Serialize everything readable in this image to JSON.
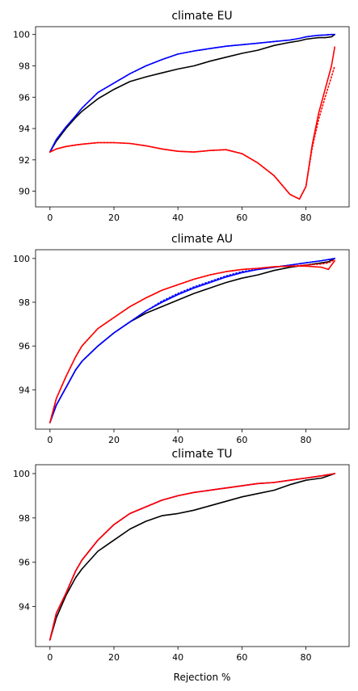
{
  "chart_data": [
    {
      "type": "line",
      "title": "climate EU",
      "xlabel": "",
      "ylabel": "",
      "xlim": [
        -4.5,
        93.5
      ],
      "ylim": [
        89.0,
        100.5
      ],
      "xticks": [
        0,
        20,
        40,
        60,
        80
      ],
      "yticks": [
        90,
        92,
        94,
        96,
        98,
        100
      ],
      "x": [
        0,
        2,
        5,
        8,
        10,
        15,
        20,
        25,
        30,
        35,
        40,
        45,
        50,
        55,
        60,
        65,
        70,
        75,
        78,
        80,
        82,
        84,
        86,
        88,
        89
      ],
      "series": [
        {
          "color": "#000000",
          "dash": "solid",
          "values": [
            92.5,
            93.2,
            94.0,
            94.7,
            95.1,
            95.9,
            96.5,
            97.0,
            97.3,
            97.55,
            97.8,
            98.0,
            98.3,
            98.55,
            98.8,
            99.0,
            99.3,
            99.5,
            99.6,
            99.7,
            99.75,
            99.8,
            99.8,
            99.85,
            100.0
          ]
        },
        {
          "color": "#0000ff",
          "dash": "solid",
          "values": [
            92.5,
            93.3,
            94.1,
            94.8,
            95.3,
            96.3,
            96.9,
            97.5,
            98.0,
            98.4,
            98.75,
            98.95,
            99.1,
            99.25,
            99.35,
            99.45,
            99.55,
            99.65,
            99.75,
            99.85,
            99.9,
            99.95,
            99.97,
            100.0,
            100.0
          ]
        },
        {
          "color": "#0000ff",
          "dash": "dotted",
          "values": [
            92.5,
            93.3,
            94.1,
            94.8,
            95.3,
            96.3,
            96.9,
            97.5,
            98.0,
            98.4,
            98.75,
            98.95,
            99.1,
            99.25,
            99.35,
            99.45,
            99.55,
            99.65,
            99.75,
            99.85,
            99.9,
            99.95,
            99.97,
            100.0,
            100.0
          ]
        },
        {
          "color": "#ff0000",
          "dash": "solid",
          "values": [
            92.5,
            92.7,
            92.85,
            92.95,
            93.0,
            93.1,
            93.1,
            93.05,
            92.9,
            92.7,
            92.55,
            92.5,
            92.6,
            92.65,
            92.4,
            91.8,
            91.0,
            89.8,
            89.5,
            90.3,
            93.0,
            95.0,
            96.5,
            98.0,
            99.2
          ]
        },
        {
          "color": "#ff0000",
          "dash": "dotted",
          "values": [
            92.5,
            92.7,
            92.85,
            92.95,
            93.0,
            93.1,
            93.1,
            93.05,
            92.9,
            92.7,
            92.55,
            92.5,
            92.6,
            92.65,
            92.4,
            91.8,
            91.0,
            89.8,
            89.5,
            90.3,
            92.8,
            94.6,
            96.0,
            97.3,
            98.0
          ]
        }
      ]
    },
    {
      "type": "line",
      "title": "climate AU",
      "xlabel": "",
      "ylabel": "",
      "xlim": [
        -4.5,
        93.5
      ],
      "ylim": [
        92.2,
        100.4
      ],
      "xticks": [
        0,
        20,
        40,
        60,
        80
      ],
      "yticks": [
        94,
        96,
        98,
        100
      ],
      "x": [
        0,
        2,
        5,
        8,
        10,
        15,
        20,
        25,
        30,
        35,
        40,
        45,
        50,
        55,
        60,
        65,
        70,
        75,
        80,
        85,
        87,
        89
      ],
      "series": [
        {
          "color": "#000000",
          "dash": "solid",
          "values": [
            92.5,
            93.3,
            94.1,
            94.9,
            95.3,
            96.0,
            96.6,
            97.1,
            97.5,
            97.8,
            98.1,
            98.4,
            98.65,
            98.9,
            99.1,
            99.25,
            99.45,
            99.6,
            99.7,
            99.8,
            99.85,
            100.0
          ]
        },
        {
          "color": "#0000ff",
          "dash": "solid",
          "values": [
            92.5,
            93.3,
            94.1,
            94.9,
            95.3,
            96.0,
            96.6,
            97.1,
            97.6,
            98.0,
            98.35,
            98.65,
            98.9,
            99.15,
            99.35,
            99.5,
            99.6,
            99.7,
            99.8,
            99.9,
            99.95,
            100.0
          ]
        },
        {
          "color": "#0000ff",
          "dash": "dotted",
          "values": [
            92.5,
            93.3,
            94.1,
            94.9,
            95.3,
            96.0,
            96.6,
            97.1,
            97.6,
            98.05,
            98.4,
            98.7,
            98.95,
            99.2,
            99.4,
            99.5,
            99.6,
            99.7,
            99.8,
            99.9,
            99.95,
            100.0
          ]
        },
        {
          "color": "#ff0000",
          "dash": "solid",
          "values": [
            92.5,
            93.6,
            94.6,
            95.5,
            96.0,
            96.8,
            97.3,
            97.8,
            98.2,
            98.55,
            98.8,
            99.05,
            99.25,
            99.4,
            99.5,
            99.55,
            99.62,
            99.65,
            99.65,
            99.6,
            99.5,
            99.9
          ]
        },
        {
          "color": "#ff0000",
          "dash": "dotted",
          "values": [
            92.5,
            93.6,
            94.6,
            95.5,
            96.0,
            96.8,
            97.3,
            97.8,
            98.2,
            98.55,
            98.8,
            99.05,
            99.25,
            99.4,
            99.5,
            99.55,
            99.62,
            99.65,
            99.7,
            99.75,
            99.8,
            99.95
          ]
        }
      ]
    },
    {
      "type": "line",
      "title": "climate TU",
      "xlabel": "Rejection %",
      "ylabel": "",
      "xlim": [
        -4.5,
        93.5
      ],
      "ylim": [
        92.2,
        100.4
      ],
      "xticks": [
        0,
        20,
        40,
        60,
        80
      ],
      "yticks": [
        94,
        96,
        98,
        100
      ],
      "x": [
        0,
        2,
        5,
        8,
        10,
        15,
        20,
        25,
        30,
        35,
        40,
        45,
        50,
        55,
        60,
        65,
        70,
        75,
        80,
        85,
        89
      ],
      "series": [
        {
          "color": "#000000",
          "dash": "solid",
          "values": [
            92.5,
            93.5,
            94.5,
            95.3,
            95.7,
            96.5,
            97.0,
            97.5,
            97.85,
            98.1,
            98.2,
            98.35,
            98.55,
            98.75,
            98.95,
            99.1,
            99.25,
            99.5,
            99.7,
            99.8,
            100.0
          ]
        },
        {
          "color": "#0000ff",
          "dash": "solid",
          "values": [
            92.5,
            93.7,
            94.6,
            95.6,
            96.1,
            97.0,
            97.7,
            98.2,
            98.5,
            98.8,
            99.0,
            99.15,
            99.25,
            99.35,
            99.45,
            99.55,
            99.6,
            99.7,
            99.8,
            99.9,
            100.0
          ]
        },
        {
          "color": "#ff0000",
          "dash": "solid",
          "values": [
            92.5,
            93.7,
            94.6,
            95.6,
            96.1,
            97.0,
            97.7,
            98.2,
            98.5,
            98.8,
            99.0,
            99.15,
            99.25,
            99.35,
            99.45,
            99.55,
            99.6,
            99.7,
            99.8,
            99.9,
            100.0
          ]
        },
        {
          "color": "#ff0000",
          "dash": "dotted",
          "values": [
            92.5,
            93.7,
            94.6,
            95.6,
            96.1,
            97.0,
            97.7,
            98.2,
            98.5,
            98.8,
            99.0,
            99.15,
            99.25,
            99.35,
            99.45,
            99.55,
            99.6,
            99.7,
            99.8,
            99.9,
            100.0
          ]
        }
      ]
    }
  ]
}
